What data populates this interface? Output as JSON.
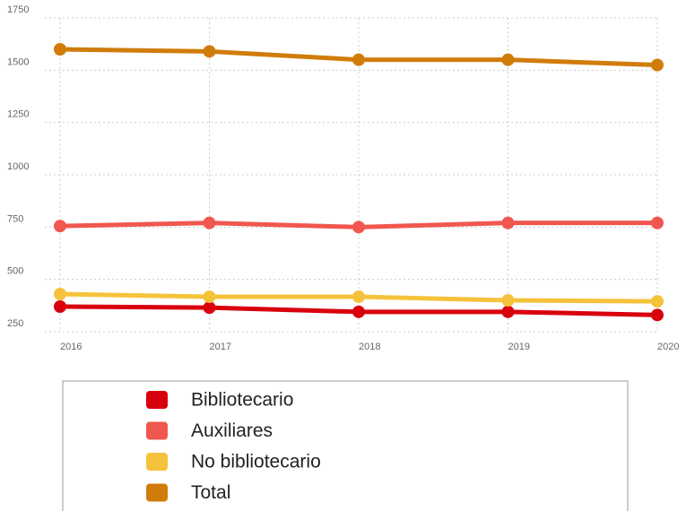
{
  "chart_data": {
    "type": "line",
    "categories": [
      "2016",
      "2017",
      "2018",
      "2019",
      "2020"
    ],
    "series": [
      {
        "name": "Bibliotecario",
        "color": "#d9000d",
        "values": [
          370,
          365,
          345,
          345,
          330
        ]
      },
      {
        "name": "Auxiliares",
        "color": "#f0574f",
        "values": [
          755,
          770,
          750,
          770,
          770
        ]
      },
      {
        "name": "No bibliotecario",
        "color": "#f5c33b",
        "values": [
          430,
          417,
          417,
          400,
          395
        ]
      },
      {
        "name": "Total",
        "color": "#d07c0a",
        "values": [
          1600,
          1590,
          1550,
          1550,
          1525
        ]
      }
    ],
    "ylim": [
      250,
      1750
    ],
    "yticks": [
      250,
      500,
      750,
      1000,
      1250,
      1500,
      1750
    ],
    "grid": true,
    "legend": "bottom"
  }
}
